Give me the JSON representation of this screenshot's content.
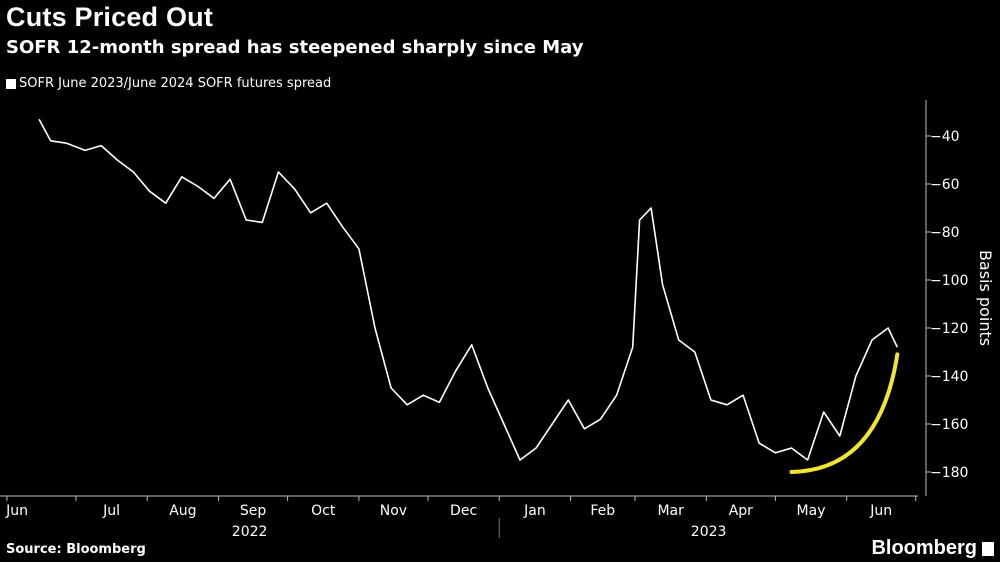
{
  "header": {
    "title": "Cuts Priced Out",
    "subtitle": "SOFR 12-month spread has steepened sharply since May"
  },
  "footer": {
    "source": "Source: Bloomberg",
    "brand": "Bloomberg"
  },
  "colors": {
    "background": "#000000",
    "line": "#ffffff",
    "highlight": "#f2e62f"
  },
  "chart_data": {
    "type": "line",
    "legend_position": "top-left",
    "grid": false,
    "ylabel": "Basis points",
    "ylim": [
      -190,
      -25
    ],
    "y_ticks": [
      -40,
      -60,
      -80,
      -100,
      -120,
      -140,
      -160,
      -180
    ],
    "x_month_labels": [
      "Jun",
      "Jul",
      "Aug",
      "Sep",
      "Oct",
      "Nov",
      "Dec",
      "Jan",
      "Feb",
      "Mar",
      "Apr",
      "May",
      "Jun"
    ],
    "x_year_labels": [
      "2022",
      "2023"
    ],
    "series": [
      {
        "name": "SOFR June 2023/June 2024 SOFR futures spread",
        "x": [
          "2022-06-15",
          "2022-06-20",
          "2022-06-27",
          "2022-07-05",
          "2022-07-12",
          "2022-07-19",
          "2022-07-26",
          "2022-08-02",
          "2022-08-09",
          "2022-08-16",
          "2022-08-23",
          "2022-08-30",
          "2022-09-06",
          "2022-09-13",
          "2022-09-20",
          "2022-09-27",
          "2022-10-04",
          "2022-10-11",
          "2022-10-18",
          "2022-10-25",
          "2022-11-01",
          "2022-11-08",
          "2022-11-15",
          "2022-11-22",
          "2022-11-29",
          "2022-12-06",
          "2022-12-13",
          "2022-12-20",
          "2022-12-27",
          "2023-01-03",
          "2023-01-10",
          "2023-01-17",
          "2023-01-24",
          "2023-01-31",
          "2023-02-07",
          "2023-02-14",
          "2023-02-21",
          "2023-02-28",
          "2023-03-03",
          "2023-03-08",
          "2023-03-13",
          "2023-03-20",
          "2023-03-27",
          "2023-04-03",
          "2023-04-10",
          "2023-04-17",
          "2023-04-24",
          "2023-05-01",
          "2023-05-08",
          "2023-05-15",
          "2023-05-22",
          "2023-05-29",
          "2023-06-05",
          "2023-06-12",
          "2023-06-19",
          "2023-06-23"
        ],
        "values": [
          -33,
          -42,
          -43,
          -46,
          -44,
          -50,
          -55,
          -63,
          -68,
          -57,
          -61,
          -66,
          -58,
          -75,
          -76,
          -55,
          -62,
          -72,
          -68,
          -78,
          -87,
          -120,
          -145,
          -152,
          -148,
          -151,
          -138,
          -127,
          -145,
          -160,
          -175,
          -170,
          -160,
          -150,
          -162,
          -158,
          -148,
          -128,
          -75,
          -70,
          -102,
          -125,
          -130,
          -150,
          -152,
          -148,
          -168,
          -172,
          -170,
          -175,
          -155,
          -165,
          -140,
          -125,
          -120,
          -128
        ]
      }
    ],
    "annotations": [
      {
        "type": "highlight-arrow",
        "from_x": "2023-05-08",
        "to_x": "2023-06-23",
        "note": ""
      }
    ]
  }
}
